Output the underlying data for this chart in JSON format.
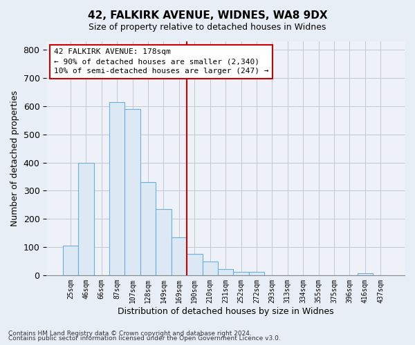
{
  "title": "42, FALKIRK AVENUE, WIDNES, WA8 9DX",
  "subtitle": "Size of property relative to detached houses in Widnes",
  "xlabel": "Distribution of detached houses by size in Widnes",
  "ylabel": "Number of detached properties",
  "bar_labels": [
    "25sqm",
    "46sqm",
    "66sqm",
    "87sqm",
    "107sqm",
    "128sqm",
    "149sqm",
    "169sqm",
    "190sqm",
    "210sqm",
    "231sqm",
    "252sqm",
    "272sqm",
    "293sqm",
    "313sqm",
    "334sqm",
    "355sqm",
    "375sqm",
    "396sqm",
    "416sqm",
    "437sqm"
  ],
  "bar_values": [
    105,
    400,
    0,
    615,
    590,
    330,
    235,
    135,
    75,
    48,
    22,
    12,
    12,
    0,
    0,
    0,
    0,
    0,
    0,
    7,
    0
  ],
  "bar_color": "#dce9f5",
  "bar_edge_color": "#6baed6",
  "annotation_line_value_label": "169sqm",
  "annotation_line_idx": 7,
  "annotation_box_lines": [
    "42 FALKIRK AVENUE: 178sqm",
    "← 90% of detached houses are smaller (2,340)",
    "10% of semi-detached houses are larger (247) →"
  ],
  "ylim": [
    0,
    830
  ],
  "yticks": [
    0,
    100,
    200,
    300,
    400,
    500,
    600,
    700,
    800
  ],
  "footnote1": "Contains HM Land Registry data © Crown copyright and database right 2024.",
  "footnote2": "Contains public sector information licensed under the Open Government Licence v3.0.",
  "bg_color": "#e8eef5",
  "plot_bg_color": "#eef2f8"
}
